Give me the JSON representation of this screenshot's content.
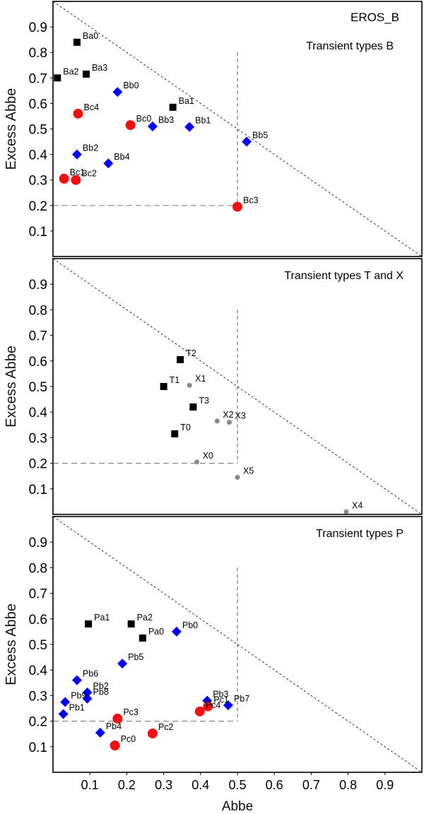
{
  "xlabel": "Abbe",
  "x_ticks": [
    "0.1",
    "0.2",
    "0.3",
    "0.4",
    "0.5",
    "0.6",
    "0.7",
    "0.8",
    "0.9"
  ],
  "y_ticks": [
    "0.1",
    "0.2",
    "0.3",
    "0.4",
    "0.5",
    "0.6",
    "0.7",
    "0.8",
    "0.9"
  ],
  "colors": {
    "square": "#000000",
    "diamond": "#0000ee",
    "circle": "#ee1111",
    "dot": "#888888"
  },
  "chart_data": [
    {
      "type": "scatter",
      "title": "EROS_B",
      "subtitle": "Transient types B",
      "xlabel": "Abbe",
      "ylabel": "Excess Abbe",
      "xlim": [
        0,
        1
      ],
      "ylim": [
        0,
        1
      ],
      "grid": false,
      "reference_lines": {
        "diagonal": "y = 1 - x",
        "vertical_x": 0.5,
        "horizontal_y": 0.2
      },
      "series": [
        {
          "marker": "square",
          "points": [
            {
              "label": "Ba0",
              "x": 0.065,
              "y": 0.84
            },
            {
              "label": "Ba1",
              "x": 0.325,
              "y": 0.585
            },
            {
              "label": "Ba2",
              "x": 0.012,
              "y": 0.7
            },
            {
              "label": "Ba3",
              "x": 0.09,
              "y": 0.715
            }
          ]
        },
        {
          "marker": "diamond",
          "points": [
            {
              "label": "Bb0",
              "x": 0.175,
              "y": 0.645
            },
            {
              "label": "Bb1",
              "x": 0.37,
              "y": 0.508
            },
            {
              "label": "Bb2",
              "x": 0.065,
              "y": 0.4
            },
            {
              "label": "Bb3",
              "x": 0.27,
              "y": 0.51
            },
            {
              "label": "Bb4",
              "x": 0.15,
              "y": 0.365
            },
            {
              "label": "Bb5",
              "x": 0.525,
              "y": 0.45
            }
          ]
        },
        {
          "marker": "circle",
          "points": [
            {
              "label": "Bc0",
              "x": 0.21,
              "y": 0.515
            },
            {
              "label": "Bc1",
              "x": 0.03,
              "y": 0.305
            },
            {
              "label": "Bc2",
              "x": 0.062,
              "y": 0.3
            },
            {
              "label": "Bc3",
              "x": 0.5,
              "y": 0.195
            },
            {
              "label": "Bc4",
              "x": 0.068,
              "y": 0.56
            }
          ]
        }
      ]
    },
    {
      "type": "scatter",
      "subtitle": "Transient types T and X",
      "xlabel": "",
      "ylabel": "Excess Abbe",
      "xlim": [
        0,
        1
      ],
      "ylim": [
        0,
        1
      ],
      "grid": false,
      "reference_lines": {
        "diagonal": "y = 1 - x",
        "vertical_x": 0.5,
        "horizontal_y": 0.2
      },
      "series": [
        {
          "marker": "square",
          "points": [
            {
              "label": "T0",
              "x": 0.33,
              "y": 0.315
            },
            {
              "label": "T1",
              "x": 0.3,
              "y": 0.5
            },
            {
              "label": "T2",
              "x": 0.345,
              "y": 0.605
            },
            {
              "label": "T3",
              "x": 0.38,
              "y": 0.42
            }
          ]
        },
        {
          "marker": "dot",
          "points": [
            {
              "label": "X0",
              "x": 0.39,
              "y": 0.205
            },
            {
              "label": "X1",
              "x": 0.37,
              "y": 0.505
            },
            {
              "label": "X2",
              "x": 0.445,
              "y": 0.365
            },
            {
              "label": "X3",
              "x": 0.478,
              "y": 0.36
            },
            {
              "label": "X4",
              "x": 0.795,
              "y": 0.01
            },
            {
              "label": "X5",
              "x": 0.5,
              "y": 0.145
            }
          ]
        }
      ]
    },
    {
      "type": "scatter",
      "subtitle": "Transient types P",
      "xlabel": "Abbe",
      "ylabel": "Excess Abbe",
      "xlim": [
        0,
        1
      ],
      "ylim": [
        0,
        1
      ],
      "grid": false,
      "reference_lines": {
        "diagonal": "y = 1 - x",
        "vertical_x": 0.5,
        "horizontal_y": 0.2
      },
      "series": [
        {
          "marker": "square",
          "points": [
            {
              "label": "Pa0",
              "x": 0.243,
              "y": 0.525
            },
            {
              "label": "Pa1",
              "x": 0.096,
              "y": 0.58
            },
            {
              "label": "Pa2",
              "x": 0.212,
              "y": 0.58
            }
          ]
        },
        {
          "marker": "diamond",
          "points": [
            {
              "label": "Pb0",
              "x": 0.335,
              "y": 0.55
            },
            {
              "label": "Pb1",
              "x": 0.028,
              "y": 0.228
            },
            {
              "label": "Pb2",
              "x": 0.093,
              "y": 0.312
            },
            {
              "label": "Pb3",
              "x": 0.418,
              "y": 0.28
            },
            {
              "label": "Pb4",
              "x": 0.128,
              "y": 0.155
            },
            {
              "label": "Pb5",
              "x": 0.188,
              "y": 0.425
            },
            {
              "label": "Pb6",
              "x": 0.065,
              "y": 0.36
            },
            {
              "label": "Pb7",
              "x": 0.475,
              "y": 0.262
            },
            {
              "label": "Pb8",
              "x": 0.093,
              "y": 0.288
            },
            {
              "label": "Pb9",
              "x": 0.033,
              "y": 0.275
            }
          ]
        },
        {
          "marker": "circle",
          "points": [
            {
              "label": "Pc0",
              "x": 0.168,
              "y": 0.105
            },
            {
              "label": "Pc1",
              "x": 0.42,
              "y": 0.258
            },
            {
              "label": "Pc2",
              "x": 0.27,
              "y": 0.152
            },
            {
              "label": "Pc3",
              "x": 0.175,
              "y": 0.21
            },
            {
              "label": "Pc4",
              "x": 0.398,
              "y": 0.238
            }
          ]
        }
      ]
    }
  ]
}
